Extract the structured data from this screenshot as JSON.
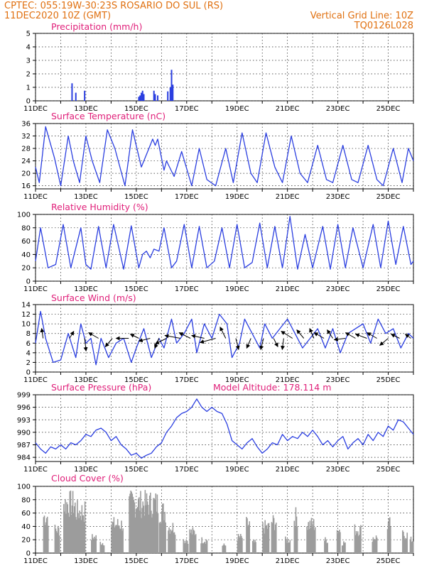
{
  "header": {
    "line1": "CPTEC:   055:19W-30:23S   ROSARIO DO SUL (RS)",
    "line2": "11DEC2020 10Z (GMT)",
    "grid_note": "Vertical Grid Line: 10Z",
    "code": "TQ0126L028"
  },
  "colors": {
    "header": "#e07010",
    "title": "#e0207a",
    "line": "#2a3ee0",
    "bar": "#2a3ee0",
    "cloud": "#9c9c9c",
    "wind_arrow": "#000000"
  },
  "x_axis": {
    "start_day": 11,
    "end_day": 26,
    "tick_labels": [
      "11DEC",
      "13DEC",
      "15DEC",
      "17DEC",
      "19DEC",
      "21DEC",
      "23DEC",
      "25DEC"
    ],
    "tick_days": [
      11,
      13,
      15,
      17,
      19,
      21,
      23,
      25
    ]
  },
  "chart_data": [
    {
      "id": "precip",
      "type": "bar",
      "title": "Precipitation (mm/h)",
      "ylim": [
        0,
        5
      ],
      "yticks": [
        0,
        1,
        2,
        3,
        4,
        5
      ],
      "points": [
        [
          12.45,
          1.3
        ],
        [
          12.6,
          0.6
        ],
        [
          12.95,
          0.75
        ],
        [
          15.1,
          0.3
        ],
        [
          15.15,
          0.4
        ],
        [
          15.2,
          0.6
        ],
        [
          15.25,
          0.75
        ],
        [
          15.3,
          0.5
        ],
        [
          15.7,
          0.75
        ],
        [
          15.75,
          0.5
        ],
        [
          15.85,
          0.4
        ],
        [
          16.25,
          0.7
        ],
        [
          16.35,
          1.0
        ],
        [
          16.4,
          2.3
        ],
        [
          16.45,
          1.2
        ]
      ]
    },
    {
      "id": "temp",
      "type": "line",
      "title": "Surface Temperature (nC)",
      "ylim": [
        15,
        36
      ],
      "yticks": [
        16,
        20,
        24,
        28,
        32,
        36
      ],
      "x": [
        11,
        11.15,
        11.4,
        11.75,
        12.0,
        12.3,
        12.5,
        12.75,
        13.0,
        13.25,
        13.55,
        13.85,
        14.15,
        14.55,
        14.85,
        15.2,
        15.55,
        15.65,
        15.75,
        15.85,
        16.0,
        16.1,
        16.2,
        16.5,
        16.8,
        17.2,
        17.5,
        17.8,
        18.15,
        18.55,
        18.85,
        19.2,
        19.55,
        19.8,
        20.15,
        20.5,
        20.8,
        21.15,
        21.5,
        21.8,
        22.2,
        22.55,
        22.8,
        23.2,
        23.55,
        23.8,
        24.2,
        24.55,
        24.8,
        25.2,
        25.55,
        25.8,
        26.0
      ],
      "y": [
        22,
        17,
        35,
        25,
        16,
        32,
        24,
        17,
        32,
        24,
        17,
        34,
        28,
        16,
        34,
        22,
        29,
        31,
        29,
        31,
        25,
        21,
        24,
        19,
        27,
        16,
        28,
        18,
        16,
        28,
        17,
        33,
        20,
        17,
        33,
        22,
        17,
        32,
        20,
        17,
        29,
        18,
        17,
        29,
        18,
        17,
        29,
        18,
        16,
        28,
        17,
        28,
        24
      ]
    },
    {
      "id": "rh",
      "type": "line",
      "title": "Relative Humidity (%)",
      "ylim": [
        0,
        100
      ],
      "yticks": [
        0,
        20,
        40,
        60,
        80,
        100
      ],
      "x": [
        11,
        11.2,
        11.5,
        11.8,
        12.1,
        12.4,
        12.8,
        13.0,
        13.2,
        13.5,
        13.8,
        14.1,
        14.5,
        14.8,
        15.1,
        15.25,
        15.4,
        15.55,
        15.7,
        15.9,
        16.1,
        16.4,
        16.6,
        16.9,
        17.2,
        17.5,
        17.8,
        18.1,
        18.4,
        18.7,
        19.0,
        19.3,
        19.6,
        19.9,
        20.2,
        20.5,
        20.8,
        21.1,
        21.4,
        21.7,
        22.0,
        22.4,
        22.7,
        23.0,
        23.3,
        23.6,
        24.0,
        24.4,
        24.7,
        25.0,
        25.3,
        25.6,
        25.9,
        26.0
      ],
      "y": [
        30,
        80,
        20,
        25,
        85,
        20,
        80,
        25,
        18,
        82,
        20,
        85,
        18,
        83,
        20,
        40,
        45,
        35,
        48,
        45,
        80,
        20,
        30,
        85,
        20,
        82,
        20,
        30,
        80,
        20,
        85,
        20,
        28,
        87,
        20,
        82,
        20,
        97,
        18,
        70,
        20,
        82,
        18,
        85,
        20,
        80,
        20,
        85,
        20,
        90,
        25,
        82,
        25,
        30
      ]
    },
    {
      "id": "wind",
      "type": "line",
      "title": "Surface Wind (m/s)",
      "ylim": [
        0,
        14
      ],
      "yticks": [
        0,
        2,
        4,
        6,
        8,
        10,
        12,
        14
      ],
      "x": [
        11,
        11.2,
        11.4,
        11.7,
        12.0,
        12.3,
        12.6,
        12.8,
        13.0,
        13.2,
        13.4,
        13.6,
        13.9,
        14.2,
        14.5,
        14.8,
        15.0,
        15.3,
        15.6,
        15.9,
        16.1,
        16.4,
        16.6,
        16.9,
        17.2,
        17.4,
        17.7,
        18.0,
        18.3,
        18.6,
        18.8,
        19.1,
        19.3,
        19.6,
        19.9,
        20.1,
        20.4,
        20.7,
        21.0,
        21.3,
        21.6,
        21.9,
        22.2,
        22.5,
        22.8,
        23.1,
        23.4,
        23.7,
        24.0,
        24.3,
        24.6,
        24.9,
        25.2,
        25.5,
        25.8,
        26.0
      ],
      "y": [
        6,
        12.6,
        7,
        2,
        2.5,
        8,
        3,
        10,
        6,
        7,
        1.5,
        7,
        3,
        6,
        7,
        2,
        5,
        9,
        3,
        7,
        5,
        11,
        6,
        8,
        11,
        4,
        10,
        7,
        12,
        10,
        3,
        6,
        11,
        8,
        5,
        10,
        7,
        9,
        11,
        8,
        5,
        7,
        9,
        5,
        9,
        4,
        8,
        9,
        10,
        6,
        11,
        8,
        9,
        5,
        8,
        7
      ],
      "arrows": [
        {
          "x": 11.3,
          "dx": -2,
          "dy": -14
        },
        {
          "x": 12.35,
          "dx": 6,
          "dy": -10
        },
        {
          "x": 12.95,
          "dx": 2,
          "dy": 18
        },
        {
          "x": 13.5,
          "dx": -14,
          "dy": -8
        },
        {
          "x": 14.05,
          "dx": -10,
          "dy": 12
        },
        {
          "x": 14.7,
          "dx": -18,
          "dy": 0
        },
        {
          "x": 15.1,
          "dx": -12,
          "dy": -6
        },
        {
          "x": 15.55,
          "dx": -16,
          "dy": 4
        },
        {
          "x": 15.9,
          "dx": -6,
          "dy": 14
        },
        {
          "x": 16.2,
          "dx": -16,
          "dy": 8
        },
        {
          "x": 16.75,
          "dx": -22,
          "dy": -4
        },
        {
          "x": 17.15,
          "dx": -16,
          "dy": -8
        },
        {
          "x": 17.7,
          "dx": -18,
          "dy": -4
        },
        {
          "x": 18.15,
          "dx": -22,
          "dy": 6
        },
        {
          "x": 18.55,
          "dx": -8,
          "dy": -16
        },
        {
          "x": 18.95,
          "dx": 4,
          "dy": 16
        },
        {
          "x": 19.55,
          "dx": -6,
          "dy": 14
        },
        {
          "x": 20.05,
          "dx": -4,
          "dy": 16
        },
        {
          "x": 20.45,
          "dx": 6,
          "dy": 12
        },
        {
          "x": 20.85,
          "dx": -2,
          "dy": 16
        },
        {
          "x": 21.2,
          "dx": -16,
          "dy": -10
        },
        {
          "x": 21.65,
          "dx": -10,
          "dy": -12
        },
        {
          "x": 22.05,
          "dx": -6,
          "dy": -14
        },
        {
          "x": 22.45,
          "dx": -14,
          "dy": -8
        },
        {
          "x": 22.8,
          "dx": -8,
          "dy": -12
        },
        {
          "x": 23.3,
          "dx": -16,
          "dy": 2
        },
        {
          "x": 23.7,
          "dx": -14,
          "dy": -8
        },
        {
          "x": 24.15,
          "dx": -16,
          "dy": -6
        },
        {
          "x": 24.55,
          "dx": -14,
          "dy": -8
        },
        {
          "x": 25.0,
          "dx": -12,
          "dy": 10
        },
        {
          "x": 25.45,
          "dx": -12,
          "dy": -6
        },
        {
          "x": 25.9,
          "dx": -8,
          "dy": -6
        }
      ]
    },
    {
      "id": "pressure",
      "type": "line",
      "title": "Surface Pressure (hPa)",
      "subtitle": "Model Altitude: 178.114 m",
      "ylim": [
        983,
        999
      ],
      "yticks": [
        984,
        987,
        990,
        993,
        996,
        999
      ],
      "x": [
        11,
        11.2,
        11.4,
        11.6,
        11.8,
        12.0,
        12.2,
        12.4,
        12.6,
        12.8,
        13.0,
        13.2,
        13.4,
        13.6,
        13.8,
        14.0,
        14.2,
        14.4,
        14.6,
        14.8,
        15.0,
        15.2,
        15.4,
        15.6,
        15.8,
        16.0,
        16.2,
        16.4,
        16.6,
        16.8,
        17.0,
        17.2,
        17.4,
        17.6,
        17.8,
        18.0,
        18.2,
        18.4,
        18.6,
        18.8,
        19.0,
        19.2,
        19.4,
        19.6,
        19.8,
        20.0,
        20.2,
        20.4,
        20.6,
        20.8,
        21.0,
        21.2,
        21.4,
        21.6,
        21.8,
        22.0,
        22.2,
        22.4,
        22.6,
        22.8,
        23.0,
        23.2,
        23.4,
        23.6,
        23.8,
        24.0,
        24.2,
        24.4,
        24.6,
        24.8,
        25.0,
        25.2,
        25.4,
        25.6,
        25.8,
        26.0
      ],
      "y": [
        987.5,
        986,
        985,
        986.5,
        986,
        987,
        986,
        987.5,
        987,
        988,
        989.5,
        989,
        990.5,
        991,
        990,
        988,
        989,
        987,
        986,
        984.5,
        985,
        983.8,
        984.5,
        985,
        986.5,
        987.5,
        990,
        991.5,
        993.5,
        994.5,
        995,
        996,
        998,
        996,
        995,
        996,
        995,
        994.5,
        992,
        988,
        987,
        986,
        987.5,
        988.5,
        986.5,
        985,
        986,
        987.5,
        987,
        989.5,
        988,
        989,
        988.5,
        990,
        989,
        990.5,
        989,
        987,
        988,
        986.5,
        988,
        989,
        986,
        987.5,
        988.5,
        987,
        989.5,
        988,
        990,
        989,
        991.5,
        990.5,
        993,
        992.5,
        991,
        989.5
      ]
    },
    {
      "id": "cloud",
      "type": "bar",
      "title": "Cloud Cover (%)",
      "ylim": [
        0,
        100
      ],
      "yticks": [
        0,
        20,
        40,
        60,
        80,
        100
      ],
      "seed": 7,
      "blocks": [
        [
          11.3,
          11.5,
          70
        ],
        [
          11.75,
          11.95,
          45
        ],
        [
          12.1,
          12.55,
          95
        ],
        [
          12.55,
          12.95,
          80
        ],
        [
          13.2,
          13.4,
          30
        ],
        [
          13.55,
          13.7,
          20
        ],
        [
          14.0,
          14.45,
          55
        ],
        [
          14.7,
          15.0,
          95
        ],
        [
          15.0,
          15.85,
          95
        ],
        [
          15.9,
          16.15,
          80
        ],
        [
          16.25,
          16.55,
          50
        ],
        [
          16.85,
          17.05,
          25
        ],
        [
          17.1,
          17.35,
          40
        ],
        [
          17.55,
          17.8,
          25
        ],
        [
          18.4,
          18.55,
          15
        ],
        [
          19.0,
          19.2,
          30
        ],
        [
          19.35,
          19.5,
          55
        ],
        [
          19.6,
          19.75,
          20
        ],
        [
          20.0,
          20.25,
          50
        ],
        [
          20.35,
          20.55,
          60
        ],
        [
          20.9,
          21.1,
          25
        ],
        [
          21.25,
          21.4,
          70
        ],
        [
          21.75,
          22.1,
          55
        ],
        [
          22.45,
          22.6,
          25
        ],
        [
          22.95,
          23.1,
          45
        ],
        [
          23.15,
          23.3,
          20
        ],
        [
          23.65,
          23.9,
          45
        ],
        [
          24.35,
          24.55,
          30
        ],
        [
          24.95,
          25.1,
          55
        ],
        [
          25.55,
          25.75,
          35
        ],
        [
          25.85,
          26.0,
          25
        ]
      ]
    }
  ]
}
